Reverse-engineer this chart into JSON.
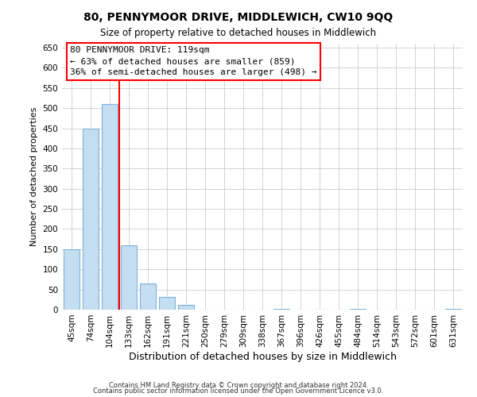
{
  "title": "80, PENNYMOOR DRIVE, MIDDLEWICH, CW10 9QQ",
  "subtitle": "Size of property relative to detached houses in Middlewich",
  "xlabel": "Distribution of detached houses by size in Middlewich",
  "ylabel": "Number of detached properties",
  "footnote1": "Contains HM Land Registry data © Crown copyright and database right 2024.",
  "footnote2": "Contains public sector information licensed under the Open Government Licence v3.0.",
  "bin_labels": [
    "45sqm",
    "74sqm",
    "104sqm",
    "133sqm",
    "162sqm",
    "191sqm",
    "221sqm",
    "250sqm",
    "279sqm",
    "309sqm",
    "338sqm",
    "367sqm",
    "396sqm",
    "426sqm",
    "455sqm",
    "484sqm",
    "514sqm",
    "543sqm",
    "572sqm",
    "601sqm",
    "631sqm"
  ],
  "bar_values": [
    150,
    450,
    510,
    160,
    65,
    32,
    12,
    0,
    0,
    0,
    0,
    2,
    0,
    0,
    0,
    2,
    0,
    0,
    0,
    0,
    2
  ],
  "bar_color": "#c5ddf0",
  "bar_edge_color": "#7fb3d9",
  "ylim": [
    0,
    660
  ],
  "yticks": [
    0,
    50,
    100,
    150,
    200,
    250,
    300,
    350,
    400,
    450,
    500,
    550,
    600,
    650
  ],
  "annotation_title": "80 PENNYMOOR DRIVE: 119sqm",
  "annotation_line1": "← 63% of detached houses are smaller (859)",
  "annotation_line2": "36% of semi-detached houses are larger (498) →",
  "background_color": "#ffffff",
  "grid_color": "#cccccc"
}
